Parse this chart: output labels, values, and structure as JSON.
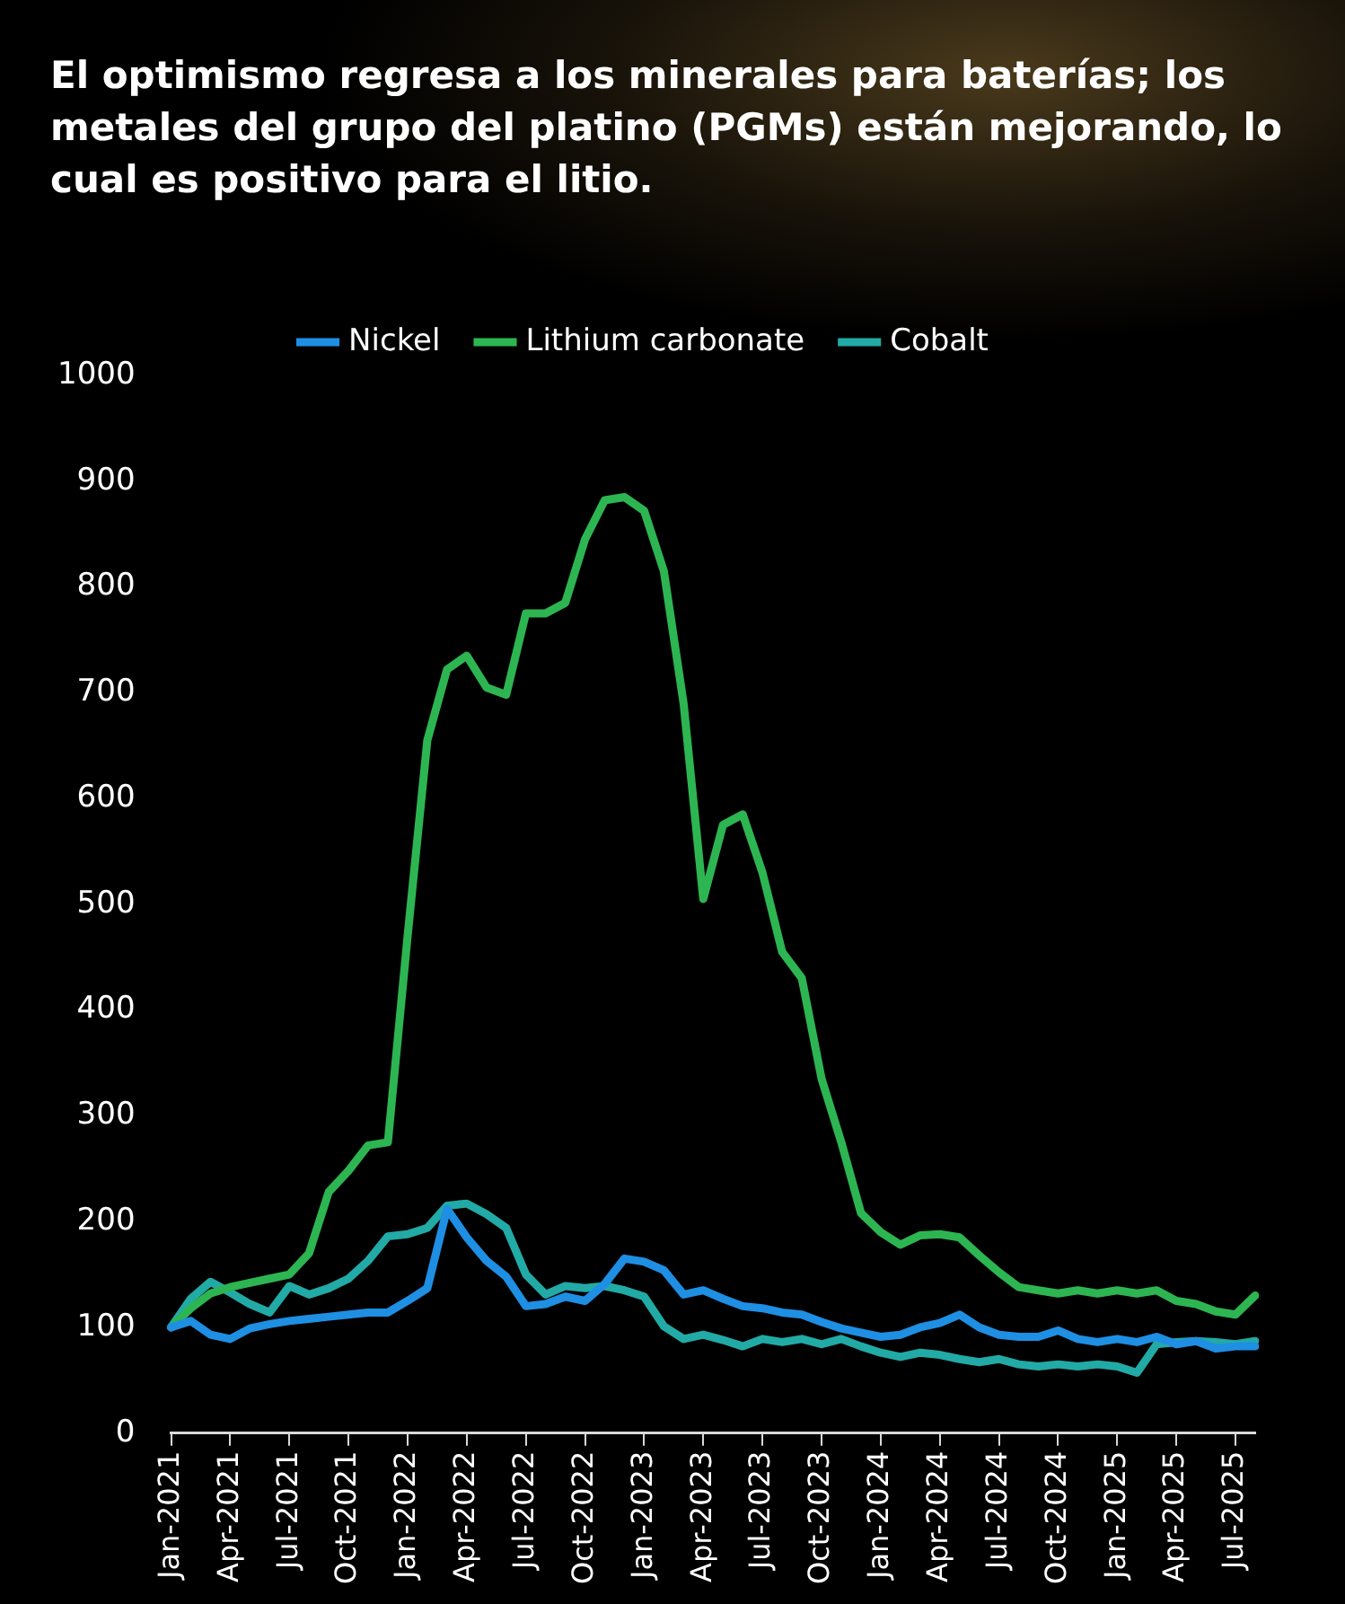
{
  "chart_data": {
    "type": "line",
    "title": "El optimismo regresa a los minerales para baterías; los metales del grupo del platino (PGMs) están mejorando, lo cual es positivo para el litio.",
    "categories": [
      "Jan-2021",
      null,
      null,
      "Apr-2021",
      null,
      null,
      "Jul-2021",
      null,
      null,
      "Oct-2021",
      null,
      null,
      "Jan-2022",
      null,
      null,
      "Apr-2022",
      null,
      null,
      "Jul-2022",
      null,
      null,
      "Oct-2022",
      null,
      null,
      "Jan-2023",
      null,
      null,
      "Apr-2023",
      null,
      null,
      "Jul-2023",
      null,
      null,
      "Oct-2023",
      null,
      null,
      "Jan-2024",
      null,
      null,
      "Apr-2024",
      null,
      null,
      "Jul-2024",
      null,
      null,
      "Oct-2024",
      null,
      null,
      "Jan-2025",
      null,
      null,
      "Apr-2025",
      null,
      null,
      "Jul-2025",
      null
    ],
    "series": [
      {
        "name": "Nickel",
        "color": "#1e8fe3",
        "values": [
          100,
          106,
          93,
          89,
          99,
          103,
          106,
          108,
          110,
          112,
          114,
          114,
          125,
          137,
          212,
          185,
          163,
          148,
          120,
          122,
          129,
          125,
          141,
          165,
          162,
          154,
          131,
          135,
          127,
          120,
          118,
          114,
          112,
          105,
          99,
          95,
          91,
          93,
          100,
          104,
          112,
          100,
          93,
          91,
          91,
          97,
          89,
          86,
          89,
          86,
          91,
          84,
          87,
          80,
          82,
          82
        ]
      },
      {
        "name": "Lithium carbonate",
        "color": "#2db552",
        "values": [
          100,
          118,
          132,
          138,
          142,
          146,
          150,
          170,
          228,
          248,
          272,
          275,
          470,
          655,
          722,
          735,
          705,
          698,
          775,
          775,
          785,
          845,
          882,
          885,
          872,
          815,
          690,
          505,
          575,
          585,
          530,
          455,
          430,
          335,
          275,
          208,
          190,
          178,
          187,
          188,
          185,
          168,
          152,
          138,
          135,
          132,
          135,
          132,
          135,
          132,
          135,
          125,
          122,
          115,
          112,
          130
        ]
      },
      {
        "name": "Cobalt",
        "color": "#22aaa6",
        "values": [
          100,
          127,
          143,
          133,
          122,
          114,
          139,
          131,
          137,
          146,
          163,
          186,
          188,
          194,
          215,
          217,
          207,
          194,
          150,
          131,
          139,
          137,
          139,
          135,
          129,
          101,
          89,
          93,
          88,
          82,
          89,
          86,
          89,
          84,
          89,
          82,
          76,
          72,
          76,
          74,
          70,
          67,
          70,
          65,
          63,
          65,
          63,
          65,
          63,
          57,
          84,
          86,
          87,
          86,
          84,
          87
        ]
      }
    ],
    "ylim": [
      0,
      1000
    ],
    "yticks": [
      0,
      100,
      200,
      300,
      400,
      500,
      600,
      700,
      800,
      900,
      1000
    ],
    "grid": false,
    "legend": "top",
    "marker": "none",
    "line_style": "solid"
  }
}
